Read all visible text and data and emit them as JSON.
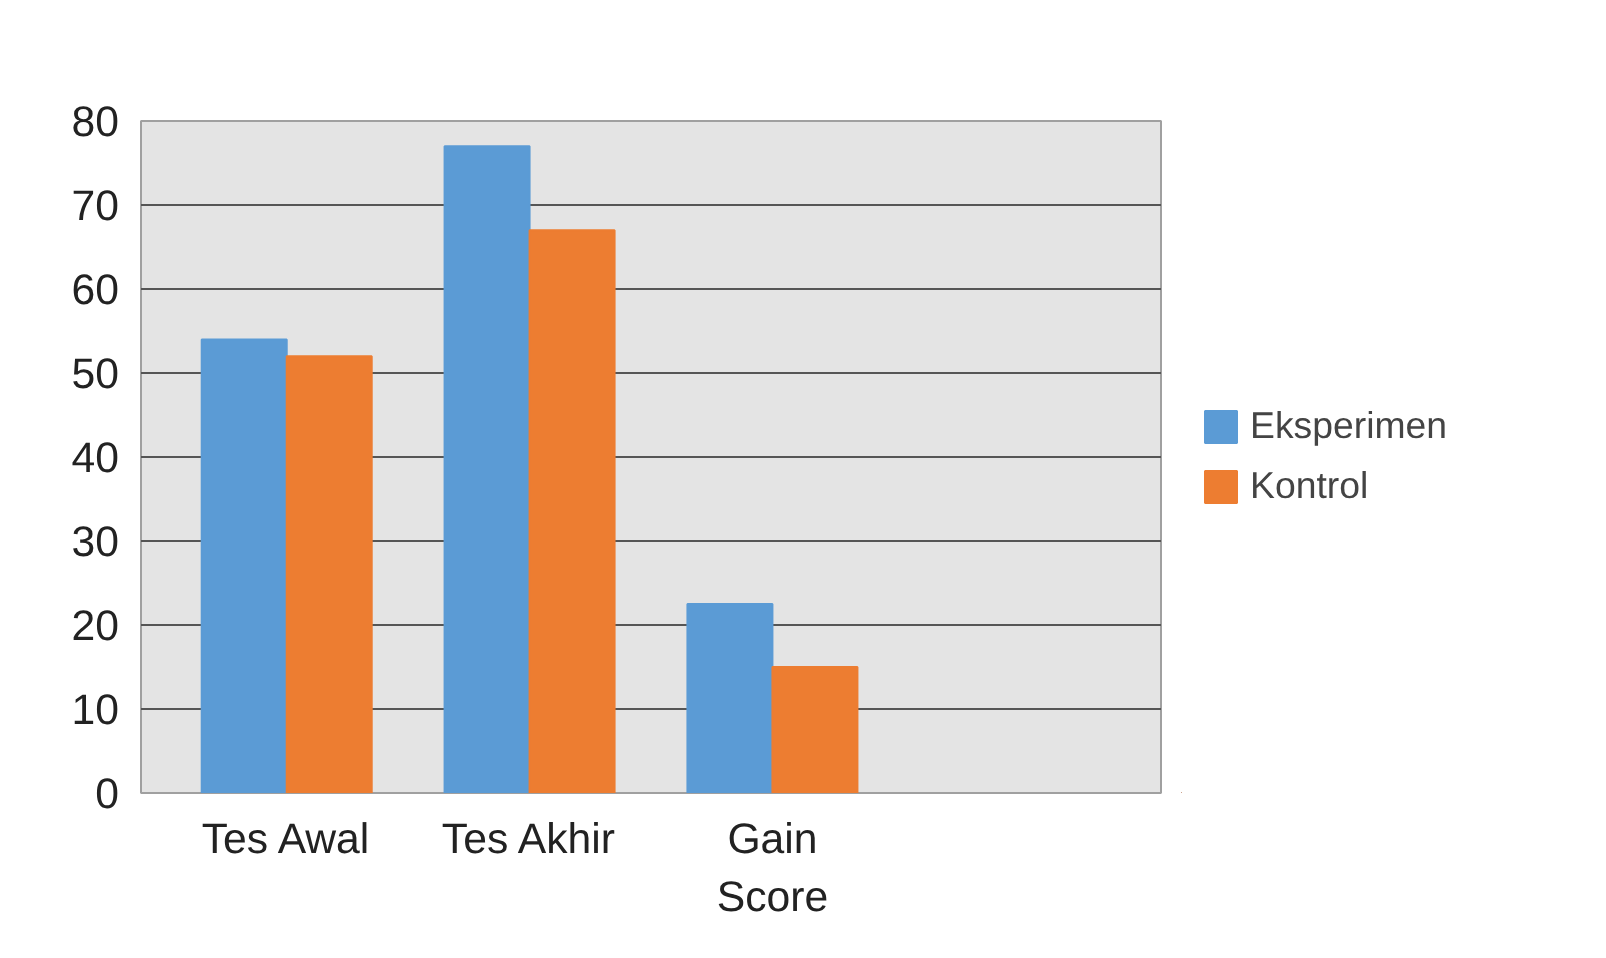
{
  "chart_data": {
    "type": "bar",
    "categories": [
      "Tes Awal",
      "Tes Akhir",
      "Gain Score",
      null
    ],
    "series": [
      {
        "name": "Eksperimen",
        "color": "#5b9bd5",
        "values": [
          54,
          77,
          22.5,
          null
        ]
      },
      {
        "name": "Kontrol",
        "color": "#ed7d31",
        "values": [
          52,
          67,
          15,
          null
        ]
      }
    ],
    "ylim": [
      0,
      80
    ],
    "yticks": [
      0,
      10,
      20,
      30,
      40,
      50,
      60,
      70,
      80
    ],
    "grid": "y",
    "legend": "right"
  }
}
